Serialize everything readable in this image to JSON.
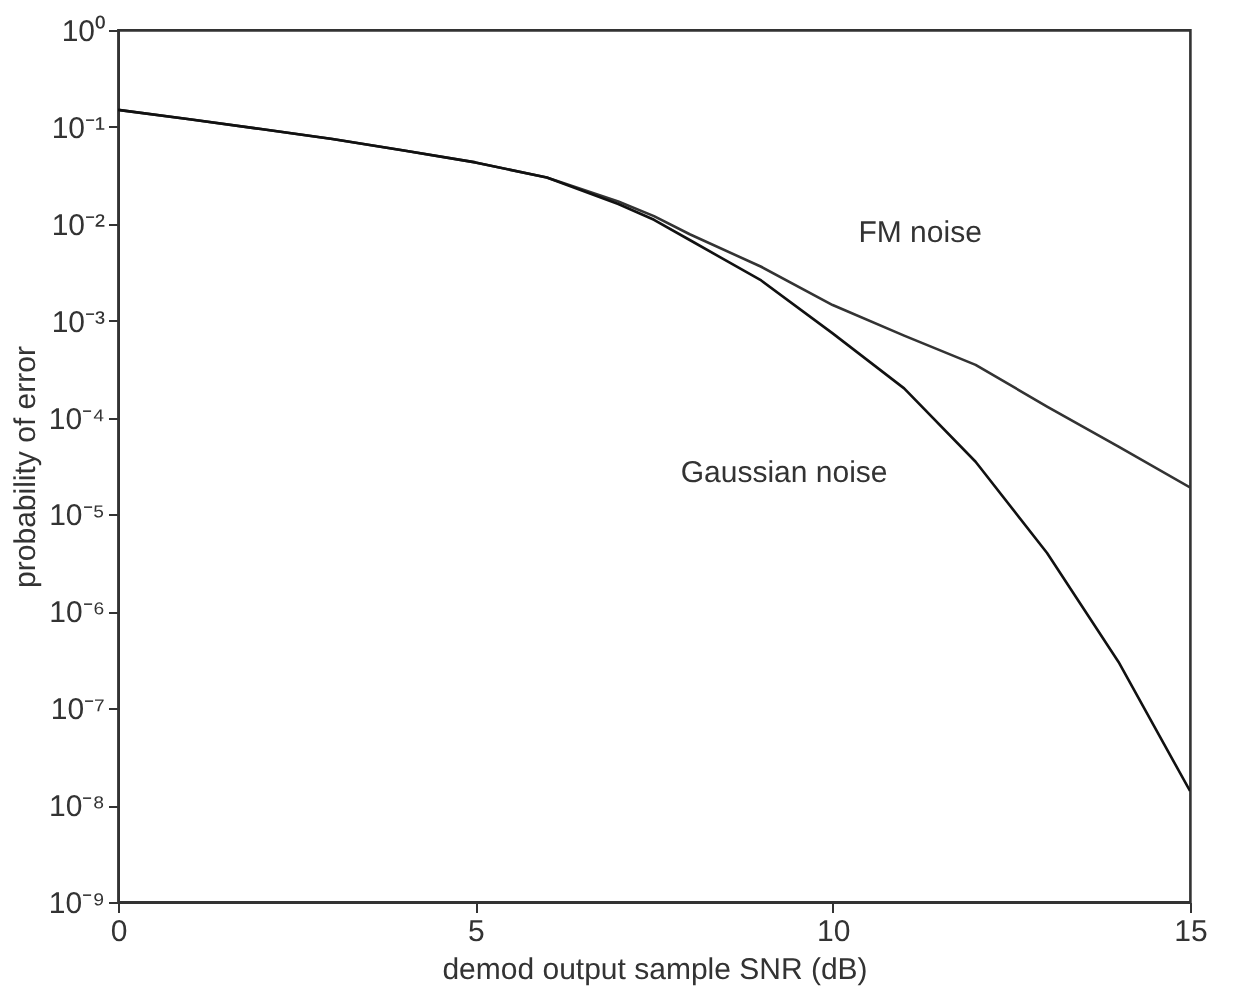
{
  "chart_data": {
    "type": "line",
    "xlabel": "demod output sample SNR (dB)",
    "ylabel": "probability of error",
    "log": "y",
    "grid": false,
    "marker": "none",
    "line_style": "solid",
    "xlim": [
      0,
      15
    ],
    "xticks": [
      0,
      5,
      10,
      15
    ],
    "ylim": [
      1e-09,
      1
    ],
    "yticks": [
      {
        "value": 1,
        "label": "10⁰"
      },
      {
        "value": 0.1,
        "label": "10⁻¹"
      },
      {
        "value": 0.01,
        "label": "10⁻²"
      },
      {
        "value": 0.001,
        "label": "10⁻³"
      },
      {
        "value": 0.0001,
        "label": "10⁻⁴"
      },
      {
        "value": 1e-05,
        "label": "10⁻⁵"
      },
      {
        "value": 1e-06,
        "label": "10⁻⁶"
      },
      {
        "value": 1e-07,
        "label": "10⁻⁷"
      },
      {
        "value": 1e-08,
        "label": "10⁻⁸"
      },
      {
        "value": 1e-09,
        "label": "10⁻⁹"
      }
    ],
    "x": [
      0,
      1,
      2,
      3,
      4,
      5,
      6,
      7,
      7.5,
      8,
      9,
      10,
      11,
      12,
      13,
      14,
      15
    ],
    "series": [
      {
        "name": "FM noise",
        "color": "#333333",
        "values": [
          0.15,
          0.12,
          0.095,
          0.075,
          0.057,
          0.043,
          0.03,
          0.017,
          0.012,
          0.0078,
          0.0036,
          0.00145,
          0.0007,
          0.00035,
          0.00013,
          5e-05,
          1.9e-05
        ]
      },
      {
        "name": "Gaussian noise",
        "color": "#111111",
        "values": [
          0.15,
          0.12,
          0.095,
          0.075,
          0.057,
          0.043,
          0.03,
          0.016,
          0.011,
          0.0068,
          0.0026,
          0.00074,
          0.0002,
          3.5e-05,
          4e-06,
          3e-07,
          1.4e-08
        ]
      }
    ]
  }
}
